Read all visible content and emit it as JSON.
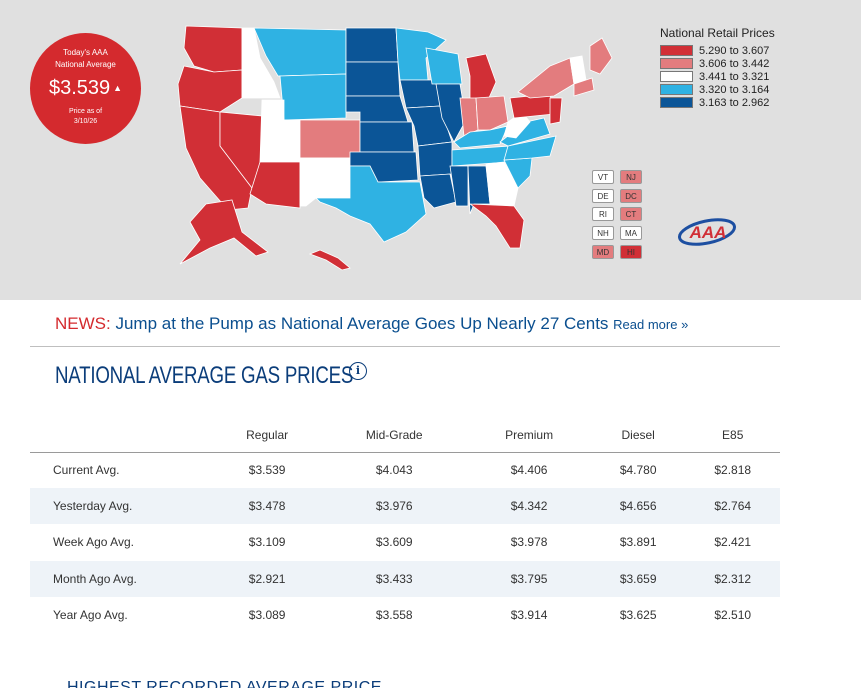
{
  "national_average": {
    "label_line1": "Today's AAA",
    "label_line2": "National Average",
    "price": "$3.539",
    "trend_arrow": "▲",
    "date_label": "Price as of",
    "date": "3/10/26"
  },
  "legend": {
    "title": "National Retail Prices",
    "items": [
      {
        "range": "5.290 to 3.607",
        "color": "#d12f36"
      },
      {
        "range": "3.606 to 3.442",
        "color": "#e37c7e"
      },
      {
        "range": "3.441 to 3.321",
        "color": "#ffffff"
      },
      {
        "range": "3.320 to 3.164",
        "color": "#2fb2e3"
      },
      {
        "range": "3.163 to 2.962",
        "color": "#0b5597"
      }
    ]
  },
  "small_states": [
    {
      "abbr": "VT",
      "tier": 2
    },
    {
      "abbr": "NJ",
      "tier": 1
    },
    {
      "abbr": "DE",
      "tier": 2
    },
    {
      "abbr": "DC",
      "tier": 1
    },
    {
      "abbr": "RI",
      "tier": 2
    },
    {
      "abbr": "CT",
      "tier": 1
    },
    {
      "abbr": "NH",
      "tier": 2
    },
    {
      "abbr": "MA",
      "tier": 2
    },
    {
      "abbr": "MD",
      "tier": 1
    },
    {
      "abbr": "HI",
      "tier": 0
    }
  ],
  "logo": {
    "text": "AAA"
  },
  "news": {
    "label": "NEWS:",
    "headline": "Jump at the Pump as National Average Goes Up Nearly 27 Cents",
    "read_more": "Read more »"
  },
  "section_title": "NATIONAL AVERAGE GAS PRICES",
  "info_icon": "i",
  "table": {
    "headers": [
      "",
      "Regular",
      "Mid-Grade",
      "Premium",
      "Diesel",
      "E85"
    ],
    "rows": [
      {
        "label": "Current Avg.",
        "values": [
          "$3.539",
          "$4.043",
          "$4.406",
          "$4.780",
          "$2.818"
        ]
      },
      {
        "label": "Yesterday Avg.",
        "values": [
          "$3.478",
          "$3.976",
          "$4.342",
          "$4.656",
          "$2.764"
        ]
      },
      {
        "label": "Week Ago Avg.",
        "values": [
          "$3.109",
          "$3.609",
          "$3.978",
          "$3.891",
          "$2.421"
        ]
      },
      {
        "label": "Month Ago Avg.",
        "values": [
          "$2.921",
          "$3.433",
          "$3.795",
          "$3.659",
          "$2.312"
        ]
      },
      {
        "label": "Year Ago Avg.",
        "values": [
          "$3.089",
          "$3.558",
          "$3.914",
          "$3.625",
          "$2.510"
        ]
      }
    ]
  },
  "next_section_title": "HIGHEST RECORDED AVERAGE PRICE"
}
